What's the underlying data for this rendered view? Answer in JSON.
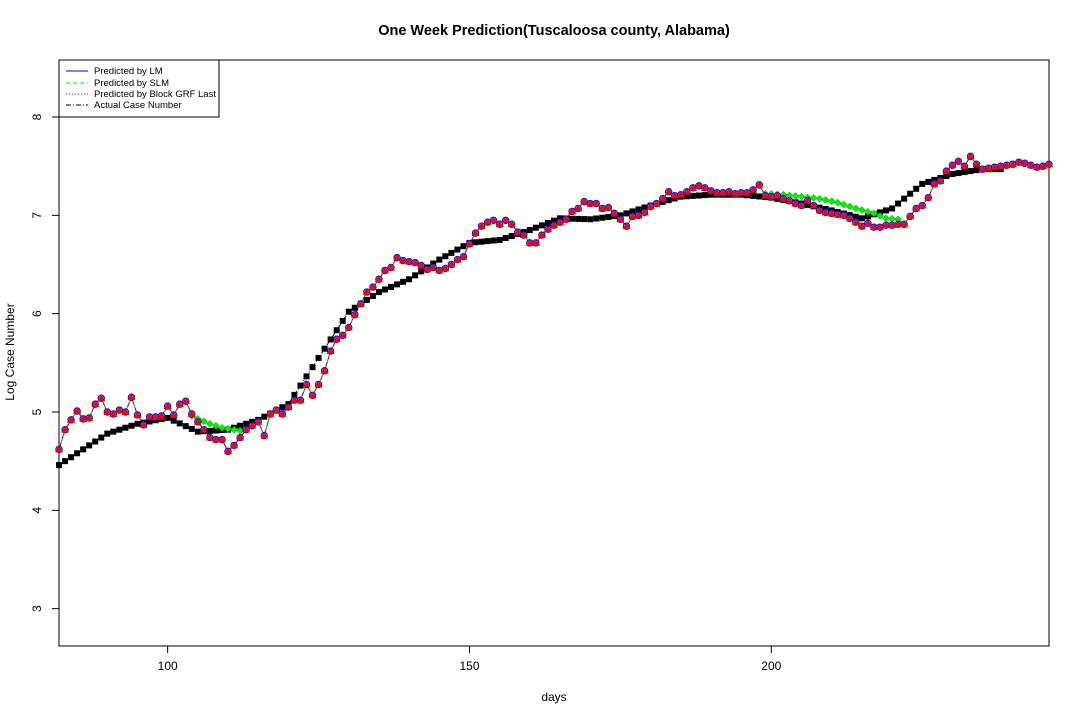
{
  "chart_data": {
    "type": "line",
    "title": "One Week Prediction(Tuscaloosa county, Alabama)",
    "xlabel": "days",
    "ylabel": "Log Case Number",
    "xlim": [
      82,
      246
    ],
    "ylim": [
      2.62,
      8.58
    ],
    "xticks": [
      100,
      150,
      200
    ],
    "yticks": [
      3,
      4,
      5,
      6,
      7,
      8
    ],
    "legend_position": "top-left",
    "grid": false,
    "legend": [
      {
        "label": "Predicted by LM",
        "color": "#0000ff",
        "line": "solid"
      },
      {
        "label": "Predicted by SLM",
        "color": "#00ee00",
        "line": "dashed"
      },
      {
        "label": "Predicted by Block GRF Last",
        "color": "#ff0000",
        "line": "dotted"
      },
      {
        "label": "Actual Case Number",
        "color": "#000000",
        "line": "dashdot"
      }
    ],
    "actual_points": [
      [
        82,
        4.46
      ],
      [
        90,
        4.78
      ],
      [
        95,
        4.88
      ],
      [
        100,
        4.94
      ],
      [
        105,
        4.8
      ],
      [
        110,
        4.82
      ],
      [
        115,
        4.92
      ],
      [
        120,
        5.08
      ],
      [
        125,
        5.55
      ],
      [
        130,
        6.02
      ],
      [
        135,
        6.22
      ],
      [
        140,
        6.35
      ],
      [
        145,
        6.55
      ],
      [
        150,
        6.72
      ],
      [
        155,
        6.75
      ],
      [
        160,
        6.85
      ],
      [
        165,
        6.97
      ],
      [
        170,
        6.96
      ],
      [
        175,
        7.0
      ],
      [
        180,
        7.1
      ],
      [
        185,
        7.19
      ],
      [
        190,
        7.21
      ],
      [
        195,
        7.21
      ],
      [
        200,
        7.18
      ],
      [
        205,
        7.12
      ],
      [
        210,
        7.05
      ],
      [
        215,
        6.97
      ],
      [
        220,
        7.07
      ],
      [
        225,
        7.32
      ],
      [
        230,
        7.42
      ],
      [
        235,
        7.47
      ],
      [
        238,
        7.47
      ],
      [
        240,
        7.51
      ],
      [
        246,
        7.48
      ]
    ],
    "predicted_points": [
      [
        82,
        4.62
      ],
      [
        83,
        4.82
      ],
      [
        84,
        4.92
      ],
      [
        85,
        5.01
      ],
      [
        86,
        4.93
      ],
      [
        87,
        4.94
      ],
      [
        88,
        5.08
      ],
      [
        89,
        5.14
      ],
      [
        90,
        5.0
      ],
      [
        91,
        4.98
      ],
      [
        92,
        5.02
      ],
      [
        93,
        5.0
      ],
      [
        94,
        5.15
      ],
      [
        95,
        4.97
      ],
      [
        96,
        4.87
      ],
      [
        97,
        4.95
      ],
      [
        98,
        4.95
      ],
      [
        99,
        4.96
      ],
      [
        100,
        5.06
      ],
      [
        101,
        4.97
      ],
      [
        102,
        5.08
      ],
      [
        103,
        5.11
      ],
      [
        104,
        4.98
      ],
      [
        105,
        4.9
      ],
      [
        106,
        4.82
      ],
      [
        107,
        4.74
      ],
      [
        108,
        4.72
      ],
      [
        109,
        4.72
      ],
      [
        110,
        4.6
      ],
      [
        111,
        4.66
      ],
      [
        112,
        4.74
      ],
      [
        113,
        4.82
      ],
      [
        114,
        4.86
      ],
      [
        115,
        4.9
      ],
      [
        116,
        4.76
      ],
      [
        117,
        4.98
      ],
      [
        118,
        5.02
      ],
      [
        119,
        4.98
      ],
      [
        120,
        5.05
      ],
      [
        121,
        5.12
      ],
      [
        122,
        5.12
      ],
      [
        123,
        5.28
      ],
      [
        124,
        5.17
      ],
      [
        125,
        5.28
      ],
      [
        126,
        5.42
      ],
      [
        127,
        5.62
      ],
      [
        128,
        5.74
      ],
      [
        129,
        5.78
      ],
      [
        130,
        5.86
      ],
      [
        131,
        5.99
      ],
      [
        132,
        6.1
      ],
      [
        133,
        6.22
      ],
      [
        134,
        6.27
      ],
      [
        135,
        6.35
      ],
      [
        136,
        6.44
      ],
      [
        137,
        6.47
      ],
      [
        138,
        6.57
      ],
      [
        139,
        6.54
      ],
      [
        140,
        6.53
      ],
      [
        141,
        6.52
      ],
      [
        142,
        6.49
      ],
      [
        143,
        6.45
      ],
      [
        144,
        6.47
      ],
      [
        145,
        6.44
      ],
      [
        146,
        6.46
      ],
      [
        147,
        6.5
      ],
      [
        148,
        6.55
      ],
      [
        149,
        6.58
      ],
      [
        150,
        6.71
      ],
      [
        151,
        6.82
      ],
      [
        152,
        6.89
      ],
      [
        153,
        6.93
      ],
      [
        154,
        6.95
      ],
      [
        155,
        6.91
      ],
      [
        156,
        6.95
      ],
      [
        157,
        6.91
      ],
      [
        158,
        6.83
      ],
      [
        159,
        6.8
      ],
      [
        160,
        6.72
      ],
      [
        161,
        6.72
      ],
      [
        162,
        6.8
      ],
      [
        163,
        6.86
      ],
      [
        164,
        6.9
      ],
      [
        165,
        6.93
      ],
      [
        166,
        6.96
      ],
      [
        167,
        7.04
      ],
      [
        168,
        7.07
      ],
      [
        169,
        7.14
      ],
      [
        170,
        7.12
      ],
      [
        171,
        7.12
      ],
      [
        172,
        7.07
      ],
      [
        173,
        7.08
      ],
      [
        174,
        7.02
      ],
      [
        175,
        6.96
      ],
      [
        176,
        6.89
      ],
      [
        177,
        6.99
      ],
      [
        178,
        7.0
      ],
      [
        179,
        7.03
      ],
      [
        180,
        7.09
      ],
      [
        181,
        7.12
      ],
      [
        182,
        7.17
      ],
      [
        183,
        7.24
      ],
      [
        184,
        7.2
      ],
      [
        185,
        7.21
      ],
      [
        186,
        7.24
      ],
      [
        187,
        7.28
      ],
      [
        188,
        7.3
      ],
      [
        189,
        7.28
      ],
      [
        190,
        7.25
      ],
      [
        191,
        7.23
      ],
      [
        192,
        7.23
      ],
      [
        193,
        7.24
      ],
      [
        194,
        7.22
      ],
      [
        195,
        7.23
      ],
      [
        196,
        7.23
      ],
      [
        197,
        7.26
      ],
      [
        198,
        7.31
      ],
      [
        199,
        7.2
      ],
      [
        200,
        7.19
      ],
      [
        201,
        7.2
      ],
      [
        202,
        7.17
      ],
      [
        203,
        7.15
      ],
      [
        204,
        7.12
      ],
      [
        205,
        7.1
      ],
      [
        206,
        7.15
      ],
      [
        207,
        7.1
      ],
      [
        208,
        7.05
      ],
      [
        209,
        7.03
      ],
      [
        210,
        7.02
      ],
      [
        211,
        7.01
      ],
      [
        212,
        7.0
      ],
      [
        213,
        6.97
      ],
      [
        214,
        6.93
      ],
      [
        215,
        6.89
      ],
      [
        216,
        6.92
      ],
      [
        217,
        6.88
      ],
      [
        218,
        6.88
      ],
      [
        219,
        6.9
      ],
      [
        220,
        6.9
      ],
      [
        221,
        6.91
      ],
      [
        222,
        6.91
      ],
      [
        223,
        6.99
      ],
      [
        224,
        7.07
      ],
      [
        225,
        7.1
      ],
      [
        226,
        7.18
      ],
      [
        227,
        7.32
      ],
      [
        228,
        7.35
      ],
      [
        229,
        7.45
      ],
      [
        230,
        7.51
      ],
      [
        231,
        7.55
      ],
      [
        232,
        7.5
      ],
      [
        233,
        7.6
      ],
      [
        234,
        7.52
      ],
      [
        235,
        7.47
      ],
      [
        236,
        7.48
      ],
      [
        237,
        7.49
      ],
      [
        238,
        7.5
      ],
      [
        239,
        7.51
      ],
      [
        240,
        7.52
      ],
      [
        241,
        7.54
      ],
      [
        242,
        7.53
      ],
      [
        243,
        7.51
      ],
      [
        244,
        7.49
      ],
      [
        245,
        7.5
      ],
      [
        246,
        7.52
      ]
    ],
    "slm_divergence": [
      [
        104,
        4.96
      ],
      [
        105,
        4.93
      ],
      [
        107,
        4.88
      ],
      [
        109,
        4.84
      ],
      [
        111,
        4.82
      ],
      [
        112,
        4.81
      ],
      [
        199,
        7.22
      ],
      [
        202,
        7.21
      ],
      [
        205,
        7.19
      ],
      [
        208,
        7.17
      ],
      [
        211,
        7.13
      ],
      [
        214,
        7.07
      ],
      [
        217,
        7.02
      ],
      [
        219,
        6.97
      ],
      [
        221,
        6.96
      ]
    ]
  }
}
